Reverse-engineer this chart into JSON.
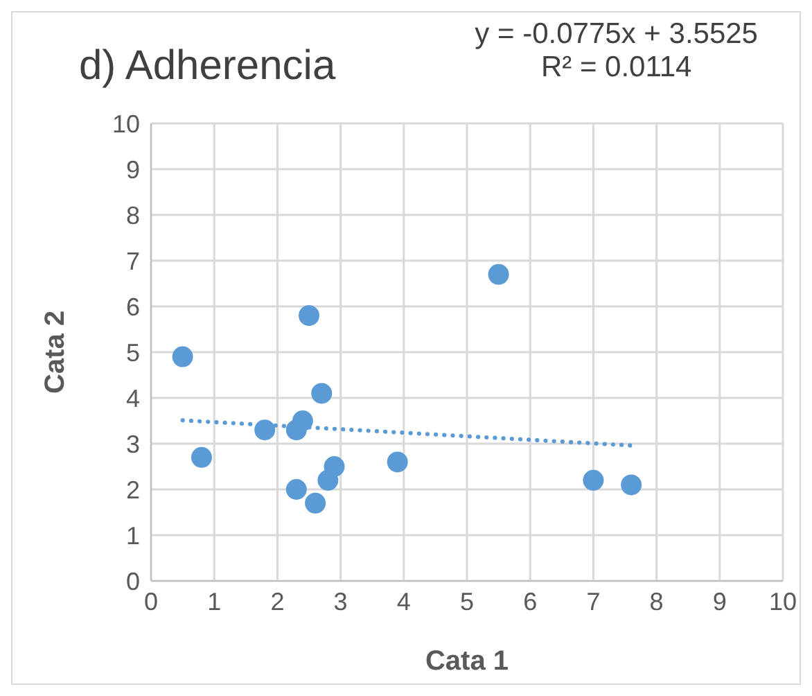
{
  "chart_data": {
    "type": "scatter",
    "title": "d) Adherencia",
    "xlabel": "Cata 1",
    "ylabel": "Cata 2",
    "annotations": [
      "y = -0.0775x + 3.5525",
      "R² = 0.0114"
    ],
    "xlim": [
      0,
      10
    ],
    "xticks": [
      0,
      1,
      2,
      3,
      4,
      5,
      6,
      7,
      8,
      9,
      10
    ],
    "ylim": [
      0,
      10
    ],
    "yticks": [
      0,
      1,
      2,
      3,
      4,
      5,
      6,
      7,
      8,
      9,
      10
    ],
    "grid": true,
    "series": [
      {
        "color": "#5b9bd5",
        "marker": "circle",
        "x": [
          0.5,
          0.8,
          1.8,
          2.3,
          2.4,
          2.5,
          2.7,
          2.3,
          2.6,
          2.8,
          2.9,
          3.9,
          5.5,
          7.0,
          7.6
        ],
        "values": [
          4.9,
          2.7,
          3.3,
          3.3,
          3.5,
          5.8,
          4.1,
          2.0,
          1.7,
          2.2,
          2.5,
          2.6,
          6.7,
          2.2,
          2.1
        ]
      },
      {
        "type": "line",
        "color": "#5b9bd5",
        "line_style": "dotted",
        "marker": "none",
        "x": [
          0.5,
          7.6
        ],
        "values": [
          3.51,
          2.96
        ]
      }
    ]
  }
}
